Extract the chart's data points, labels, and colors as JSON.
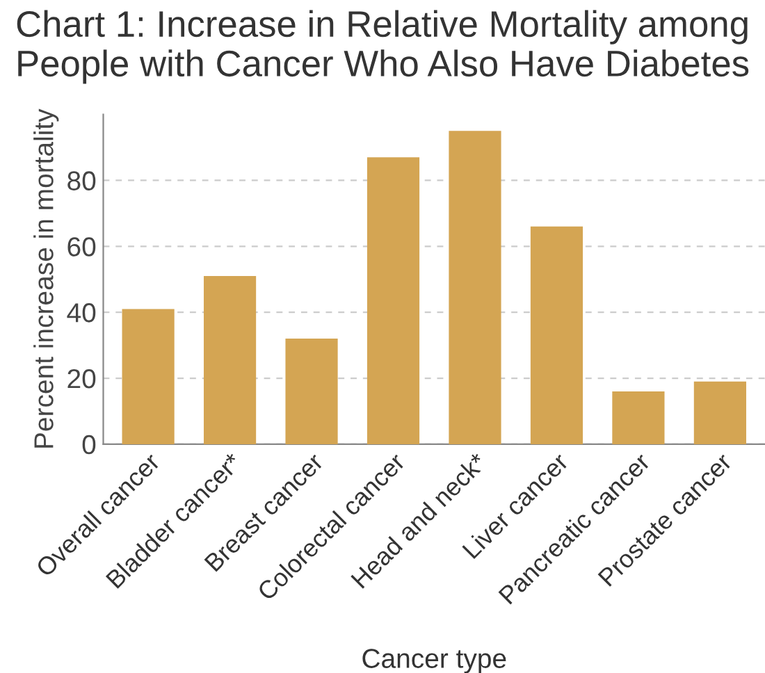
{
  "chart_data": {
    "type": "bar",
    "title": "Chart 1: Increase in Relative Mortality among\nPeople with Cancer Who Also Have Diabetes",
    "categories": [
      "Overall cancer",
      "Bladder cancer*",
      "Breast cancer",
      "Colorectal cancer",
      "Head and neck*",
      "Liver cancer",
      "Pancreatic cancer",
      "Prostate cancer"
    ],
    "values": [
      41,
      51,
      32,
      87,
      95,
      66,
      16,
      19
    ],
    "color": "#d4a553",
    "xlabel": "Cancer type",
    "ylabel": "Percent increase in mortality",
    "ylim": [
      0,
      100
    ],
    "yticks": [
      0,
      20,
      40,
      60,
      80
    ],
    "grid": "y"
  }
}
